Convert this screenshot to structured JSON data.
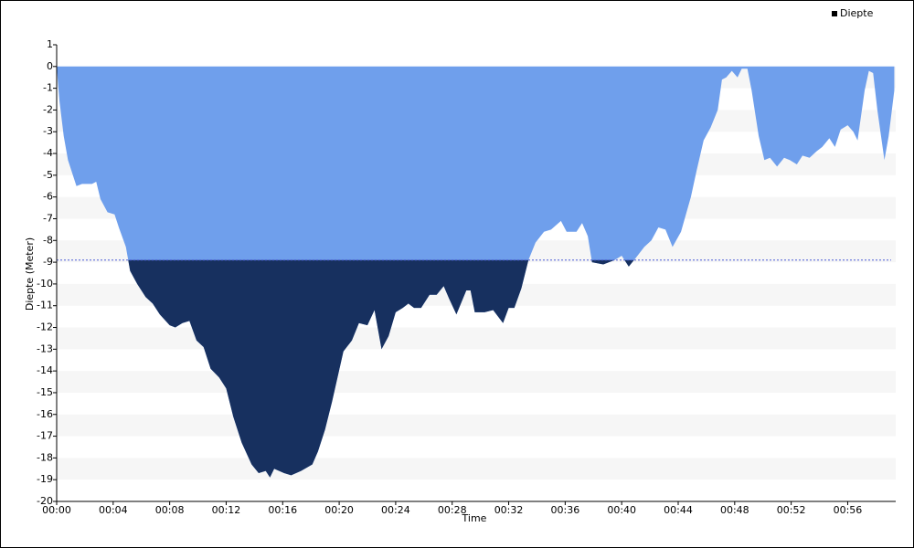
{
  "chart_data": {
    "type": "area",
    "x_label": "Time",
    "y_label": "Diepte (Meter)",
    "x": [
      0,
      0.2,
      0.5,
      0.8,
      1.4,
      1.8,
      2.5,
      2.8,
      3.1,
      3.6,
      4.1,
      4.4,
      4.9,
      5.2,
      5.7,
      6.3,
      6.8,
      7.3,
      8.0,
      8.4,
      8.9,
      9.4,
      9.9,
      10.4,
      10.9,
      11.5,
      12.0,
      12.5,
      13.1,
      13.8,
      14.3,
      14.8,
      15.1,
      15.4,
      16.1,
      16.6,
      17.3,
      18.1,
      18.5,
      19.0,
      19.5,
      20.3,
      20.9,
      21.4,
      22.0,
      22.5,
      23.0,
      23.5,
      24.0,
      24.5,
      24.9,
      25.3,
      25.8,
      26.4,
      26.9,
      27.4,
      27.8,
      28.3,
      29.0,
      29.3,
      29.6,
      30.3,
      30.9,
      31.6,
      32.0,
      32.4,
      32.9,
      33.4,
      33.9,
      34.5,
      35.0,
      35.7,
      36.1,
      36.8,
      37.2,
      37.6,
      37.9,
      38.7,
      39.5,
      40.0,
      40.5,
      41.0,
      41.6,
      42.1,
      42.6,
      43.1,
      43.6,
      44.2,
      44.9,
      45.3,
      45.8,
      46.3,
      46.8,
      47.1,
      47.4,
      47.8,
      48.2,
      48.5,
      48.9,
      49.2,
      49.7,
      50.1,
      50.5,
      51.0,
      51.5,
      51.9,
      52.4,
      52.8,
      53.3,
      53.8,
      54.2,
      54.7,
      55.1,
      55.5,
      56.0,
      56.4,
      56.7,
      57.2,
      57.5,
      57.8,
      58.1,
      58.6,
      58.9,
      59.3
    ],
    "series": [
      {
        "name": "Diepte",
        "color": "#6f9fec",
        "below_color": "#17305f",
        "legend_color": "#000000",
        "values": [
          0,
          -1.6,
          -3.2,
          -4.3,
          -5.5,
          -5.4,
          -5.4,
          -5.3,
          -6.1,
          -6.7,
          -6.8,
          -7.4,
          -8.3,
          -9.4,
          -10.0,
          -10.6,
          -10.9,
          -11.4,
          -11.9,
          -12.0,
          -11.8,
          -11.7,
          -12.6,
          -12.9,
          -13.9,
          -14.3,
          -14.8,
          -16.1,
          -17.3,
          -18.3,
          -18.7,
          -18.6,
          -18.9,
          -18.5,
          -18.7,
          -18.8,
          -18.6,
          -18.3,
          -17.7,
          -16.7,
          -15.4,
          -13.1,
          -12.6,
          -11.8,
          -11.9,
          -11.2,
          -13.0,
          -12.4,
          -11.3,
          -11.1,
          -10.9,
          -11.1,
          -11.1,
          -10.5,
          -10.5,
          -10.1,
          -10.7,
          -11.4,
          -10.3,
          -10.3,
          -11.3,
          -11.3,
          -11.2,
          -11.8,
          -11.1,
          -11.1,
          -10.2,
          -8.9,
          -8.1,
          -7.6,
          -7.5,
          -7.1,
          -7.6,
          -7.6,
          -7.2,
          -7.8,
          -9.0,
          -9.1,
          -8.9,
          -8.7,
          -9.2,
          -8.8,
          -8.3,
          -8.0,
          -7.4,
          -7.5,
          -8.3,
          -7.6,
          -6.0,
          -4.8,
          -3.4,
          -2.8,
          -2.0,
          -0.6,
          -0.5,
          -0.2,
          -0.5,
          -0.1,
          -0.1,
          -1.1,
          -3.2,
          -4.3,
          -4.2,
          -4.6,
          -4.2,
          -4.3,
          -4.5,
          -4.1,
          -4.2,
          -3.9,
          -3.7,
          -3.3,
          -3.7,
          -2.9,
          -2.7,
          -3.0,
          -3.4,
          -1.1,
          -0.2,
          -0.3,
          -2.0,
          -4.3,
          -3.2,
          -1.1
        ]
      }
    ],
    "threshold": -8.9,
    "threshold_color": "#4b5bd6",
    "xlim": [
      0,
      59.4
    ],
    "ylim": [
      -20,
      1
    ],
    "xticks": [
      {
        "value": 0,
        "label": "00:00"
      },
      {
        "value": 4,
        "label": "00:04"
      },
      {
        "value": 8,
        "label": "00:08"
      },
      {
        "value": 12,
        "label": "00:12"
      },
      {
        "value": 16,
        "label": "00:16"
      },
      {
        "value": 20,
        "label": "00:20"
      },
      {
        "value": 24,
        "label": "00:24"
      },
      {
        "value": 28,
        "label": "00:28"
      },
      {
        "value": 32,
        "label": "00:32"
      },
      {
        "value": 36,
        "label": "00:36"
      },
      {
        "value": 40,
        "label": "00:40"
      },
      {
        "value": 44,
        "label": "00:44"
      },
      {
        "value": 48,
        "label": "00:48"
      },
      {
        "value": 52,
        "label": "00:52"
      },
      {
        "value": 56,
        "label": "00:56"
      }
    ],
    "yticks": [
      -20,
      -19,
      -18,
      -17,
      -16,
      -15,
      -14,
      -13,
      -12,
      -11,
      -10,
      -9,
      -8,
      -7,
      -6,
      -5,
      -4,
      -3,
      -2,
      -1,
      0,
      1
    ],
    "grid": "bands",
    "legend": "top-right"
  }
}
